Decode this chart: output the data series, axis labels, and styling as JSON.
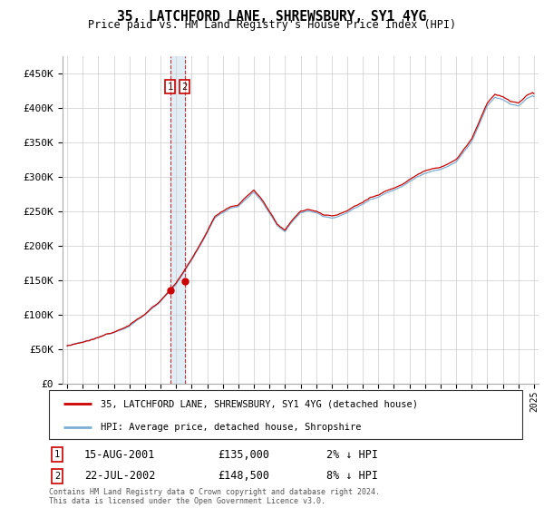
{
  "title": "35, LATCHFORD LANE, SHREWSBURY, SY1 4YG",
  "subtitle": "Price paid vs. HM Land Registry's House Price Index (HPI)",
  "ylim": [
    0,
    475000
  ],
  "yticks": [
    0,
    50000,
    100000,
    150000,
    200000,
    250000,
    300000,
    350000,
    400000,
    450000
  ],
  "ytick_labels": [
    "£0",
    "£50K",
    "£100K",
    "£150K",
    "£200K",
    "£250K",
    "£300K",
    "£350K",
    "£400K",
    "£450K"
  ],
  "sale1_date_label": "15-AUG-2001",
  "sale1_price": 135000,
  "sale1_hpi_diff": "2% ↓ HPI",
  "sale1_year": 2001.621,
  "sale2_date_label": "22-JUL-2002",
  "sale2_price": 148500,
  "sale2_hpi_diff": "8% ↓ HPI",
  "sale2_year": 2002.554,
  "red_line_color": "#cc0000",
  "blue_line_color": "#7bafd4",
  "vline_color": "#cc0000",
  "shade_color": "#d0e4f0",
  "legend_label_red": "35, LATCHFORD LANE, SHREWSBURY, SY1 4YG (detached house)",
  "legend_label_blue": "HPI: Average price, detached house, Shropshire",
  "footer": "Contains HM Land Registry data © Crown copyright and database right 2024.\nThis data is licensed under the Open Government Licence v3.0.",
  "background_color": "#ffffff",
  "grid_color": "#cccccc"
}
